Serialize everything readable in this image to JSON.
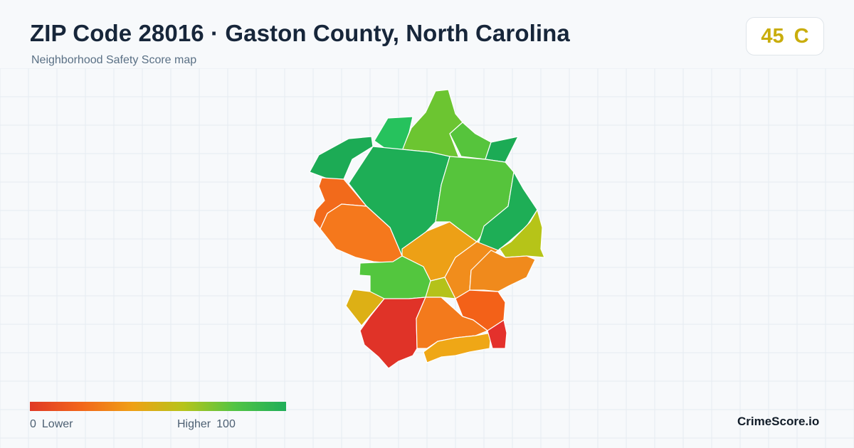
{
  "header": {
    "title": "ZIP Code 28016 · Gaston County, North Carolina",
    "subtitle": "Neighborhood Safety Score map"
  },
  "score": {
    "value": "45",
    "grade": "C",
    "color": "#c9ad0c"
  },
  "legend": {
    "low_value": "0",
    "low_label": "Lower",
    "high_label": "Higher",
    "high_value": "100",
    "gradient_colors": [
      "#e03a26",
      "#f2661a",
      "#efa015",
      "#b6c41a",
      "#52c444",
      "#1fae59"
    ]
  },
  "brand": "CrimeScore.io",
  "map": {
    "regions": [
      {
        "id": "north-tip",
        "color": "#6cc531"
      },
      {
        "id": "north-small-west",
        "color": "#26c25d"
      },
      {
        "id": "north-west",
        "color": "#1cab55"
      },
      {
        "id": "north-center-east",
        "color": "#56c43c"
      },
      {
        "id": "north-east-tip",
        "color": "#1cab55"
      },
      {
        "id": "center-big",
        "color": "#1eae56"
      },
      {
        "id": "center-east",
        "color": "#56c43c"
      },
      {
        "id": "east",
        "color": "#1eae56"
      },
      {
        "id": "far-east",
        "color": "#b6c418"
      },
      {
        "id": "west-orange-upper",
        "color": "#f26a1b"
      },
      {
        "id": "west-orange-lower",
        "color": "#f5781c"
      },
      {
        "id": "center-amber",
        "color": "#eda016"
      },
      {
        "id": "east-amber-1",
        "color": "#f18d1c"
      },
      {
        "id": "east-amber-2",
        "color": "#f08a1c"
      },
      {
        "id": "green-south",
        "color": "#53c63e"
      },
      {
        "id": "small-yellow-green",
        "color": "#b4c21a"
      },
      {
        "id": "southeast-orange",
        "color": "#f36118"
      },
      {
        "id": "southwest-yellow",
        "color": "#ddb015"
      },
      {
        "id": "south-red",
        "color": "#e03328"
      },
      {
        "id": "south-orange",
        "color": "#f37a1c"
      },
      {
        "id": "south-amber",
        "color": "#efa716"
      },
      {
        "id": "southeast-red",
        "color": "#e4312c"
      }
    ]
  }
}
